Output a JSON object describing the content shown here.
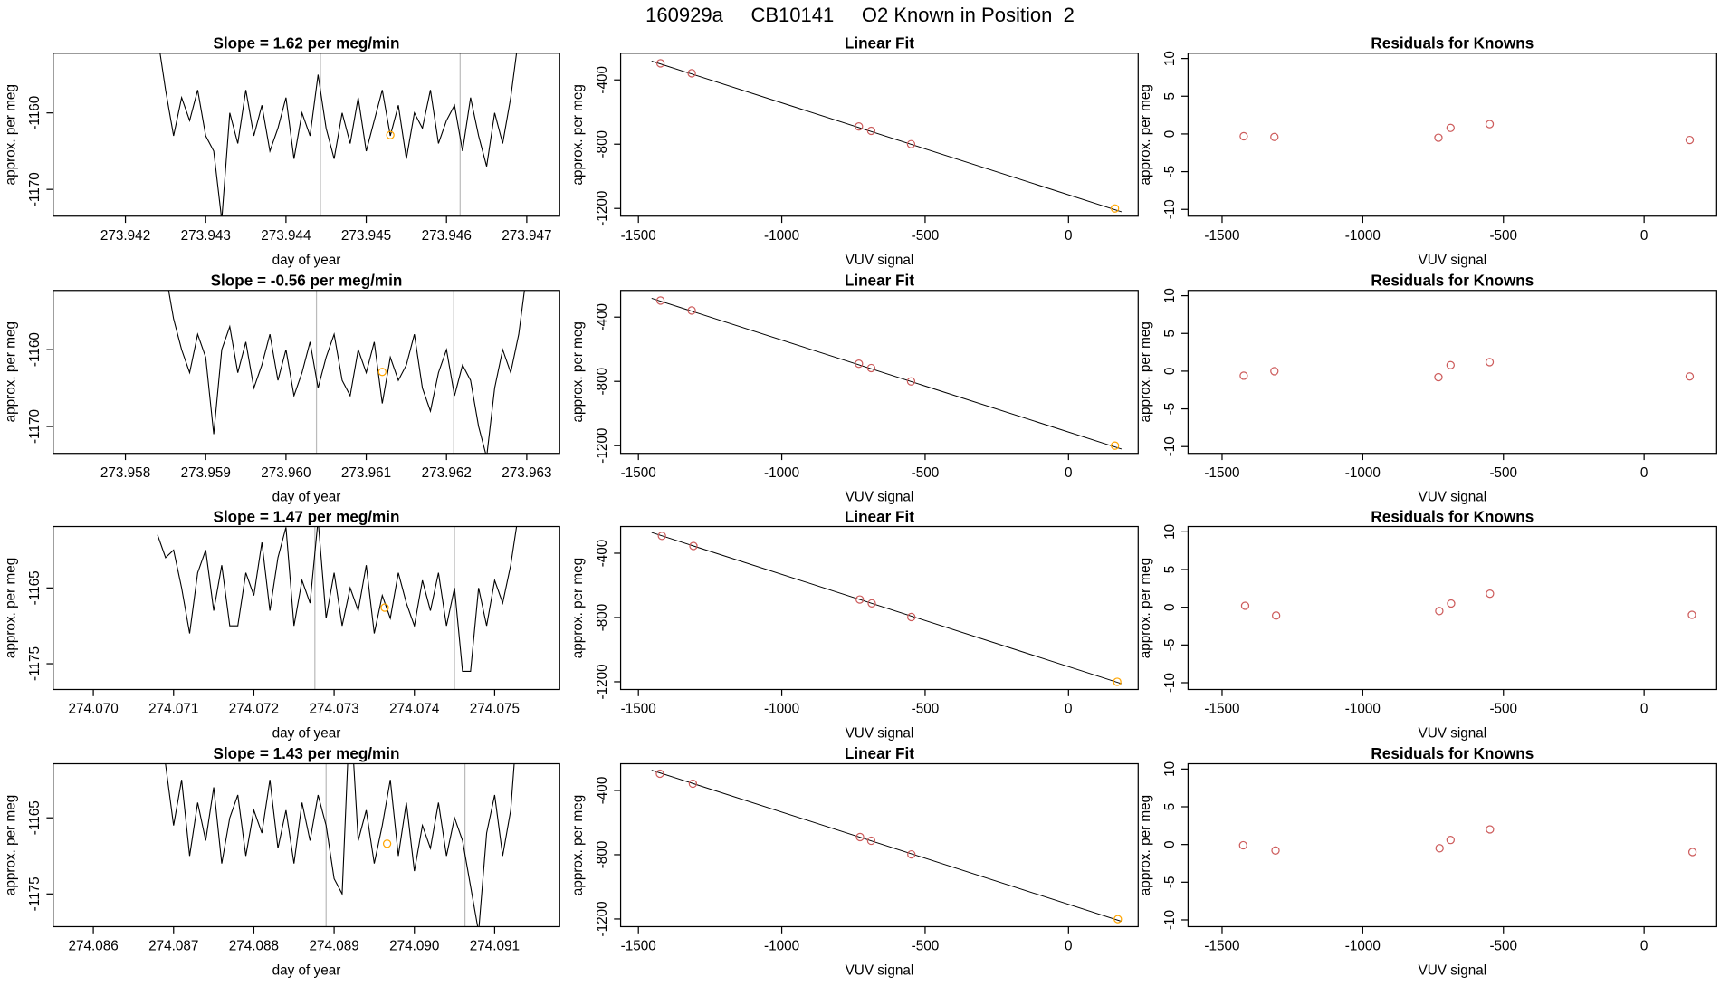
{
  "title": "160929a     CB10141     O2 Known in Position  2",
  "chart_data": [
    {
      "type": "line",
      "title": "Slope =  1.62  per meg/min",
      "xlabel": "day of year",
      "ylabel": "approx. per meg",
      "color": "#000000",
      "x": [
        273.9424,
        273.9425,
        273.9426,
        273.9427,
        273.9428,
        273.9429,
        273.943,
        273.9431,
        273.9432,
        273.9433,
        273.9434,
        273.9435,
        273.9436,
        273.9437,
        273.9438,
        273.9439,
        273.944,
        273.9441,
        273.9442,
        273.9443,
        273.9444,
        273.9445,
        273.9446,
        273.9447,
        273.9448,
        273.9449,
        273.945,
        273.9451,
        273.9452,
        273.9453,
        273.9454,
        273.9455,
        273.9456,
        273.9457,
        273.9458,
        273.9459,
        273.946,
        273.9461,
        273.9462,
        273.9463,
        273.9464,
        273.9465,
        273.9466,
        273.9467,
        273.9468,
        273.9469
      ],
      "values": [
        -1150,
        -1157,
        -1163,
        -1158,
        -1161,
        -1157,
        -1163,
        -1165,
        -1174,
        -1160,
        -1164,
        -1157,
        -1163,
        -1159,
        -1165,
        -1162,
        -1158,
        -1166,
        -1160,
        -1163,
        -1155,
        -1162,
        -1166,
        -1160,
        -1164,
        -1158,
        -1165,
        -1161,
        -1157,
        -1163,
        -1159,
        -1166,
        -1160,
        -1162,
        -1157,
        -1164,
        -1161,
        -1159,
        -1165,
        -1158,
        -1163,
        -1167,
        -1160,
        -1164,
        -1158,
        -1150
      ],
      "xlim": [
        273.9411,
        273.94741
      ],
      "ylim": [
        -1173.5,
        -1152.2
      ],
      "xticks": [
        273.942,
        273.943,
        273.944,
        273.945,
        273.946,
        273.947
      ],
      "yticks": [
        -1170,
        -1160
      ],
      "vlines": [
        273.94443,
        273.94617
      ],
      "vline_color": "#bbbbbb",
      "marker": {
        "x": 273.9453,
        "y": -1162.9,
        "color": "#ffa500"
      }
    },
    {
      "type": "scatter",
      "title": "Linear Fit",
      "xlabel": "VUV signal",
      "ylabel": "approx. per meg",
      "series": [
        {
          "color": "#cd5c5c",
          "x": [
            -1423,
            -1314,
            -731,
            -688,
            -549
          ],
          "values": [
            -297,
            -359,
            -690,
            -717,
            -800
          ]
        },
        {
          "color": "#ffa500",
          "x": [
            162
          ],
          "values": [
            -1200
          ]
        }
      ],
      "fit_line": {
        "color": "#000000",
        "x": [
          -1454,
          185
        ],
        "values": [
          -283,
          -1221
        ]
      },
      "xlim": [
        -1562,
        243
      ],
      "ylim": [
        -1248,
        -234
      ],
      "xticks": [
        -1500,
        -1000,
        -500,
        0
      ],
      "yticks": [
        -1200,
        -800,
        -400
      ]
    },
    {
      "type": "scatter",
      "title": "Residuals for Knowns",
      "xlabel": "VUV signal",
      "ylabel": "approx. per meg",
      "series": [
        {
          "color": "#cd5c5c",
          "x": [
            -1423,
            -1314,
            -731,
            -688,
            -549,
            162
          ],
          "values": [
            -0.3,
            -0.4,
            -0.5,
            0.8,
            1.3,
            -0.8
          ]
        }
      ],
      "xlim": [
        -1621,
        258
      ],
      "ylim": [
        -10.9,
        10.7
      ],
      "xticks": [
        -1500,
        -1000,
        -500,
        0
      ],
      "yticks": [
        -10,
        -5,
        0,
        5,
        10
      ]
    },
    {
      "type": "line",
      "title": "Slope =  -0.56  per meg/min",
      "xlabel": "day of year",
      "ylabel": "approx. per meg",
      "color": "#000000",
      "x": [
        273.9585,
        273.9586,
        273.9587,
        273.9588,
        273.9589,
        273.959,
        273.9591,
        273.9592,
        273.9593,
        273.9594,
        273.9595,
        273.9596,
        273.9597,
        273.9598,
        273.9599,
        273.96,
        273.9601,
        273.9602,
        273.9603,
        273.9604,
        273.9605,
        273.9606,
        273.9607,
        273.9608,
        273.9609,
        273.961,
        273.9611,
        273.9612,
        273.9613,
        273.9614,
        273.9615,
        273.9616,
        273.9617,
        273.9618,
        273.9619,
        273.962,
        273.9621,
        273.9622,
        273.9623,
        273.9624,
        273.9625,
        273.9626,
        273.9627,
        273.9628,
        273.9629,
        273.963
      ],
      "values": [
        -1150,
        -1156,
        -1160,
        -1163,
        -1158,
        -1161,
        -1171,
        -1160,
        -1157,
        -1163,
        -1159,
        -1165,
        -1162,
        -1158,
        -1164,
        -1160,
        -1166,
        -1163,
        -1159,
        -1165,
        -1161,
        -1158,
        -1164,
        -1166,
        -1160,
        -1163,
        -1159,
        -1167,
        -1161,
        -1164,
        -1162,
        -1158,
        -1165,
        -1168,
        -1163,
        -1160,
        -1166,
        -1162,
        -1164,
        -1170,
        -1174,
        -1165,
        -1160,
        -1163,
        -1158,
        -1150
      ],
      "xlim": [
        273.9571,
        273.96341
      ],
      "ylim": [
        -1173.5,
        -1152.3
      ],
      "xticks": [
        273.958,
        273.959,
        {
          "value": 273.96,
          "label": "273.960"
        },
        273.961,
        273.962,
        273.963
      ],
      "yticks": [
        -1170,
        -1160
      ],
      "vlines": [
        273.96038,
        273.96209
      ],
      "vline_color": "#bbbbbb",
      "marker": {
        "x": 273.9612,
        "y": -1162.9,
        "color": "#ffa500"
      }
    },
    {
      "type": "scatter",
      "title": "Linear Fit",
      "xlabel": "VUV signal",
      "ylabel": "approx. per meg",
      "series": [
        {
          "color": "#cd5c5c",
          "x": [
            -1423,
            -1314,
            -731,
            -688,
            -549
          ],
          "values": [
            -297,
            -359,
            -690,
            -717,
            -800
          ]
        },
        {
          "color": "#ffa500",
          "x": [
            162
          ],
          "values": [
            -1200
          ]
        }
      ],
      "fit_line": {
        "color": "#000000",
        "x": [
          -1454,
          185
        ],
        "values": [
          -283,
          -1221
        ]
      },
      "xlim": [
        -1562,
        243
      ],
      "ylim": [
        -1248,
        -234
      ],
      "xticks": [
        -1500,
        -1000,
        -500,
        0
      ],
      "yticks": [
        -1200,
        -800,
        -400
      ]
    },
    {
      "type": "scatter",
      "title": "Residuals for Knowns",
      "xlabel": "VUV signal",
      "ylabel": "approx. per meg",
      "series": [
        {
          "color": "#cd5c5c",
          "x": [
            -1423,
            -1314,
            -731,
            -688,
            -549,
            162
          ],
          "values": [
            -0.6,
            0,
            -0.8,
            0.8,
            1.2,
            -0.7
          ]
        }
      ],
      "xlim": [
        -1621,
        258
      ],
      "ylim": [
        -10.9,
        10.7
      ],
      "xticks": [
        -1500,
        -1000,
        -500,
        0
      ],
      "yticks": [
        -10,
        -5,
        0,
        5,
        10
      ]
    },
    {
      "type": "line",
      "title": "Slope =  1.47  per meg/min",
      "xlabel": "day of year",
      "ylabel": "approx. per meg",
      "color": "#000000",
      "x": [
        274.0708,
        274.0709,
        274.071,
        274.0711,
        274.0712,
        274.0713,
        274.0714,
        274.0715,
        274.0716,
        274.0717,
        274.0718,
        274.0719,
        274.072,
        274.0721,
        274.0722,
        274.0723,
        274.0724,
        274.0725,
        274.0726,
        274.0727,
        274.0728,
        274.0729,
        274.073,
        274.0731,
        274.0732,
        274.0733,
        274.0734,
        274.0735,
        274.0736,
        274.0737,
        274.0738,
        274.0739,
        274.074,
        274.0741,
        274.0742,
        274.0743,
        274.0744,
        274.0745,
        274.0746,
        274.0747,
        274.0748,
        274.0749,
        274.075,
        274.0751,
        274.0752,
        274.0753
      ],
      "values": [
        -1158,
        -1161,
        -1160,
        -1165,
        -1171,
        -1163,
        -1160,
        -1168,
        -1162,
        -1170,
        -1170,
        -1163,
        -1166,
        -1159,
        -1168,
        -1161,
        -1157,
        -1170,
        -1164,
        -1167,
        -1156,
        -1169,
        -1163,
        -1170,
        -1165,
        -1168,
        -1162,
        -1171,
        -1166,
        -1169,
        -1163,
        -1167,
        -1170,
        -1164,
        -1168,
        -1163,
        -1170,
        -1165,
        -1176,
        -1176,
        -1165,
        -1170,
        -1164,
        -1167,
        -1162,
        -1155
      ],
      "xlim": [
        274.0695,
        274.07581
      ],
      "ylim": [
        -1178.4,
        -1156.9
      ],
      "xticks": [
        {
          "value": 274.07,
          "label": "274.070"
        },
        274.071,
        274.072,
        274.073,
        274.074,
        274.075
      ],
      "yticks": [
        -1175,
        -1165
      ],
      "vlines": [
        274.07276,
        274.0745
      ],
      "vline_color": "#bbbbbb",
      "marker": {
        "x": 274.07363,
        "y": -1167.6,
        "color": "#ffa500"
      }
    },
    {
      "type": "scatter",
      "title": "Linear Fit",
      "xlabel": "VUV signal",
      "ylabel": "approx. per meg",
      "series": [
        {
          "color": "#cd5c5c",
          "x": [
            -1418,
            -1308,
            -728,
            -686,
            -548
          ],
          "values": [
            -292,
            -355,
            -688,
            -712,
            -797
          ]
        },
        {
          "color": "#ffa500",
          "x": [
            170
          ],
          "values": [
            -1200
          ]
        }
      ],
      "fit_line": {
        "color": "#000000",
        "x": [
          -1454,
          185
        ],
        "values": [
          -271,
          -1212
        ]
      },
      "xlim": [
        -1562,
        243
      ],
      "ylim": [
        -1248,
        -234
      ],
      "xticks": [
        -1500,
        -1000,
        -500,
        0
      ],
      "yticks": [
        -1200,
        -800,
        -400
      ]
    },
    {
      "type": "scatter",
      "title": "Residuals for Knowns",
      "xlabel": "VUV signal",
      "ylabel": "approx. per meg",
      "series": [
        {
          "color": "#cd5c5c",
          "x": [
            -1418,
            -1308,
            -728,
            -686,
            -548,
            170
          ],
          "values": [
            0.2,
            -1.1,
            -0.5,
            0.5,
            1.8,
            -1.0
          ]
        }
      ],
      "xlim": [
        -1621,
        258
      ],
      "ylim": [
        -10.9,
        10.7
      ],
      "xticks": [
        -1500,
        -1000,
        -500,
        0
      ],
      "yticks": [
        -10,
        -5,
        0,
        5,
        10
      ]
    },
    {
      "type": "line",
      "title": "Slope =  1.43  per meg/min",
      "xlabel": "day of year",
      "ylabel": "approx. per meg",
      "color": "#000000",
      "x": [
        274.0868,
        274.0869,
        274.087,
        274.0871,
        274.0872,
        274.0873,
        274.0874,
        274.0875,
        274.0876,
        274.0877,
        274.0878,
        274.0879,
        274.088,
        274.0881,
        274.0882,
        274.0883,
        274.0884,
        274.0885,
        274.0886,
        274.0887,
        274.0888,
        274.0889,
        274.089,
        274.0891,
        274.0892,
        274.0893,
        274.0894,
        274.0895,
        274.0896,
        274.0897,
        274.0898,
        274.0899,
        274.09,
        274.0901,
        274.0902,
        274.0903,
        274.0904,
        274.0905,
        274.0906,
        274.0907,
        274.0908,
        274.0909,
        274.091,
        274.0911,
        274.0912,
        274.0913
      ],
      "values": [
        -1150,
        -1158,
        -1166,
        -1160,
        -1170,
        -1163,
        -1168,
        -1161,
        -1171,
        -1165,
        -1162,
        -1170,
        -1164,
        -1167,
        -1160,
        -1169,
        -1164,
        -1171,
        -1163,
        -1168,
        -1162,
        -1166,
        -1173,
        -1175,
        -1150,
        -1168,
        -1164,
        -1171,
        -1166,
        -1160,
        -1170,
        -1163,
        -1172,
        -1166,
        -1169,
        -1163,
        -1170,
        -1165,
        -1168,
        -1174,
        -1180,
        -1167,
        -1162,
        -1170,
        -1164,
        -1150
      ],
      "xlim": [
        274.0855,
        274.09181
      ],
      "ylim": [
        -1179.3,
        -1157.9
      ],
      "xticks": [
        274.086,
        274.087,
        274.088,
        274.089,
        {
          "value": 274.09,
          "label": "274.090"
        },
        274.091
      ],
      "yticks": [
        -1175,
        -1165
      ],
      "vlines": [
        274.0889,
        274.09063
      ],
      "vline_color": "#bbbbbb",
      "marker": {
        "x": 274.08966,
        "y": -1168.4,
        "color": "#ffa500"
      }
    },
    {
      "type": "scatter",
      "title": "Linear Fit",
      "xlabel": "VUV signal",
      "ylabel": "approx. per meg",
      "series": [
        {
          "color": "#cd5c5c",
          "x": [
            -1425,
            -1310,
            -727,
            -688,
            -548
          ],
          "values": [
            -296,
            -358,
            -690,
            -713,
            -798
          ]
        },
        {
          "color": "#ffa500",
          "x": [
            172
          ],
          "values": [
            -1201
          ]
        }
      ],
      "fit_line": {
        "color": "#000000",
        "x": [
          -1454,
          185
        ],
        "values": [
          -274,
          -1215
        ]
      },
      "xlim": [
        -1562,
        243
      ],
      "ylim": [
        -1248,
        -234
      ],
      "xticks": [
        -1500,
        -1000,
        -500,
        0
      ],
      "yticks": [
        -1200,
        -800,
        -400
      ]
    },
    {
      "type": "scatter",
      "title": "Residuals for Knowns",
      "xlabel": "VUV signal",
      "ylabel": "approx. per meg",
      "series": [
        {
          "color": "#cd5c5c",
          "x": [
            -1425,
            -1310,
            -727,
            -688,
            -548,
            172
          ],
          "values": [
            -0.1,
            -0.8,
            -0.5,
            0.6,
            2.0,
            -1.0
          ]
        }
      ],
      "xlim": [
        -1621,
        258
      ],
      "ylim": [
        -10.9,
        10.7
      ],
      "xticks": [
        -1500,
        -1000,
        -500,
        0
      ],
      "yticks": [
        -10,
        -5,
        0,
        5,
        10
      ]
    }
  ]
}
